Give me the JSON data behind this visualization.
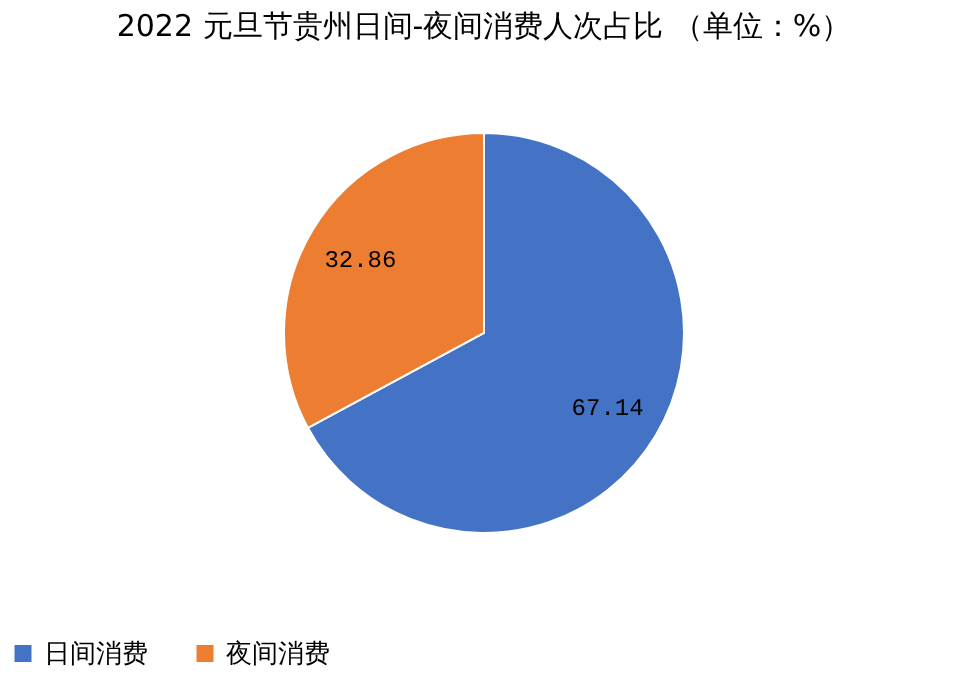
{
  "chart_data": {
    "type": "pie",
    "title": "2022 元旦节贵州日间-夜间消费人次占比 （单位：%）",
    "categories": [
      "日间消费",
      "夜间消费"
    ],
    "values": [
      67.14,
      32.86
    ],
    "colors": [
      "#4472c4",
      "#ed7d31"
    ],
    "data_labels": true,
    "legend": "bottom"
  }
}
